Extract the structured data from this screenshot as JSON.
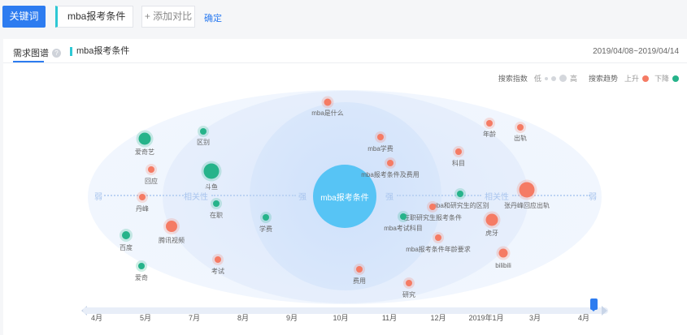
{
  "search": {
    "keyword_button": "关键词",
    "input_value": "mba报考条件",
    "add_compare": "+ 添加对比",
    "confirm": "确定"
  },
  "tabs": {
    "main": "需求图谱",
    "help": "?",
    "keyword": "mba报考条件"
  },
  "date_range": "2019/04/08~2019/04/14",
  "legend": {
    "search_index": "搜索指数",
    "low": "低",
    "high": "高",
    "trend": "搜索趋势",
    "rise": "上升",
    "fall": "下降"
  },
  "axis": {
    "weak": "弱",
    "relevance": "相关性",
    "strong": "强"
  },
  "center_keyword": "mba报考条件",
  "nodes": [
    {
      "label": "mba是什么",
      "trend": "up"
    },
    {
      "label": "爱奇艺",
      "trend": "down"
    },
    {
      "label": "区别",
      "trend": "down"
    },
    {
      "label": "年龄",
      "trend": "up"
    },
    {
      "label": "出轨",
      "trend": "up"
    },
    {
      "label": "mba学费",
      "trend": "up"
    },
    {
      "label": "科目",
      "trend": "up"
    },
    {
      "label": "回应",
      "trend": "up"
    },
    {
      "label": "斗鱼",
      "trend": "down"
    },
    {
      "label": "mba报考条件及费用",
      "trend": "up"
    },
    {
      "label": "丹峰",
      "trend": "up"
    },
    {
      "label": "mba和研究生的区别",
      "trend": "down"
    },
    {
      "label": "张丹峰回应出轨",
      "trend": "up"
    },
    {
      "label": "在职",
      "trend": "down"
    },
    {
      "label": "学费",
      "trend": "down"
    },
    {
      "label": "在职研究生报考条件",
      "trend": "up"
    },
    {
      "label": "mba考试科目",
      "trend": "down"
    },
    {
      "label": "虎牙",
      "trend": "up"
    },
    {
      "label": "腾讯视频",
      "trend": "up"
    },
    {
      "label": "百度",
      "trend": "down"
    },
    {
      "label": "mba报考条件年龄要求",
      "trend": "up"
    },
    {
      "label": "bilibili",
      "trend": "up"
    },
    {
      "label": "考试",
      "trend": "up"
    },
    {
      "label": "费用",
      "trend": "up"
    },
    {
      "label": "爱奇",
      "trend": "down"
    },
    {
      "label": "研究",
      "trend": "up"
    }
  ],
  "timeline": {
    "months": [
      "4月",
      "5月",
      "7月",
      "8月",
      "9月",
      "10月",
      "11月",
      "12月",
      "2019年1月",
      "3月",
      "4月"
    ]
  },
  "colors": {
    "primary": "#2d7cf0",
    "rise": "#f57b64",
    "fall": "#26b38a",
    "center": "#57c4f5"
  }
}
